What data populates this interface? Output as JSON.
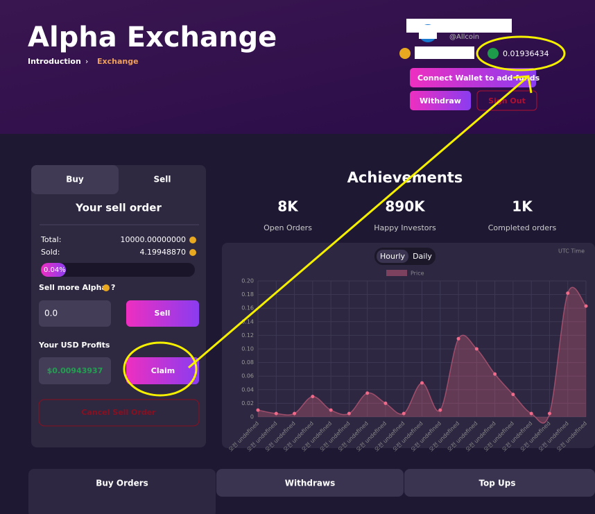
{
  "header": {
    "title": "Alpha Exchange",
    "breadcrumbs": [
      "Introduction",
      "Exchange"
    ]
  },
  "account": {
    "handle": "@Allcoin",
    "balance": "0.01936434",
    "connect": "Connect Wallet to add funds",
    "withdraw": "Withdraw",
    "sign_out": "Sign Out"
  },
  "sell_panel": {
    "tabs": [
      "Buy",
      "Sell"
    ],
    "heading": "Your sell order",
    "total_label": "Total:",
    "total": "10000.00000000",
    "sold_label": "Sold:",
    "sold": "4.19948870",
    "progress": "0.04%",
    "sell_more": "Sell more Alpha",
    "question": "?",
    "input": "0.0",
    "sell_button": "Sell",
    "profits_label": "Your USD Profits",
    "profits": "$0.00943937",
    "claim": "Claim",
    "cancel": "Cancel Sell Order"
  },
  "achievements": {
    "title": "Achievements",
    "stats": [
      {
        "value": "8K",
        "label": "Open Orders"
      },
      {
        "value": "890K",
        "label": "Happy Investors"
      },
      {
        "value": "1K",
        "label": "Completed orders"
      }
    ]
  },
  "chart_data": {
    "type": "line",
    "note": "UTC Time",
    "toggles": [
      "Hourly",
      "Daily"
    ],
    "categories": [
      "오전 undefined",
      "오전 undefined",
      "오전 undefined",
      "오전 undefined",
      "오전 undefined",
      "오전 undefined",
      "오전 undefined",
      "오전 undefined",
      "오전 undefined",
      "오전 undefined",
      "오전 undefined",
      "오전 undefined",
      "오전 undefined",
      "오전 undefined",
      "오전 undefined",
      "오전 undefined",
      "오전 undefined",
      "오전 undefined",
      "오전 undefined"
    ],
    "series": [
      {
        "name": "Price",
        "color": "#f06a8a",
        "values": [
          0.01,
          0.005,
          0.005,
          0.03,
          0.01,
          0.005,
          0.035,
          0.02,
          0.005,
          0.05,
          0.01,
          0.115,
          0.1,
          0.063,
          0.033,
          0.005,
          0.005,
          0.182,
          0.163
        ]
      }
    ],
    "ylim": [
      0,
      0.2
    ],
    "yticks": [
      0,
      0.02,
      0.04,
      0.06,
      0.08,
      {
        "value": 0.1,
        "label": "0.10"
      },
      0.12,
      0.14,
      0.16,
      0.18,
      {
        "value": 0.2,
        "label": "0.20"
      }
    ],
    "grid": true
  },
  "bottom_tabs": [
    "Buy Orders",
    "Withdraws",
    "Top Ups"
  ]
}
